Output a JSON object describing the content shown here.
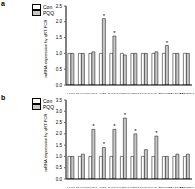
{
  "chart_data": [
    {
      "type": "bar",
      "title": "a",
      "y_label": "mRNA expression by qRT-PCR",
      "legend": "upper left",
      "categories": [
        "HO1",
        "NQO1",
        "SOD1",
        "CAT",
        "SOD2",
        "GPX4",
        "GPX1",
        "SOD3",
        "GCLC",
        "MGST1",
        "UGT1A1",
        "TXNRD1"
      ],
      "series": [
        {
          "name": "Con",
          "color": "#ffffff",
          "values": [
            1,
            1,
            1,
            1,
            1,
            1,
            1,
            1,
            1,
            1,
            1,
            1
          ]
        },
        {
          "name": "PQQ",
          "color": "#c8c8c8",
          "values": [
            1.0,
            1.0,
            1.05,
            2.1,
            1.55,
            0.95,
            1.0,
            1.0,
            1.05,
            1.25,
            1.0,
            1.0
          ]
        }
      ],
      "annotations": [
        {
          "series": "PQQ",
          "category": "CAT",
          "text": "*"
        },
        {
          "series": "PQQ",
          "category": "SOD2",
          "text": "*"
        },
        {
          "series": "PQQ",
          "category": "MGST1",
          "text": "*"
        }
      ],
      "ylim": [
        0,
        2.5
      ],
      "yticks": [
        {
          "value": 0,
          "label": "0.0"
        },
        {
          "value": 0.5,
          "label": "0.5"
        },
        {
          "value": 1,
          "label": "1.0"
        },
        {
          "value": 1.5,
          "label": "1.5"
        },
        {
          "value": 2,
          "label": "2.0"
        },
        {
          "value": 2.5,
          "label": "2.5"
        }
      ]
    },
    {
      "type": "bar",
      "title": "b",
      "y_label": "mRNA expression by qRT-PCR",
      "legend": "upper left",
      "categories": [
        "HO1",
        "NQO1",
        "SOD1",
        "CAT",
        "SOD2",
        "GPX4",
        "GPX1",
        "SOD3",
        "GCLC",
        "MGST1",
        "UGT1A1",
        "TXNRD1"
      ],
      "series": [
        {
          "name": "Con",
          "color": "#ffffff",
          "values": [
            1,
            1,
            1,
            1,
            1,
            1,
            1,
            1,
            1,
            1,
            1,
            1
          ]
        },
        {
          "name": "PQQ",
          "color": "#c8c8c8",
          "values": [
            1.0,
            1.1,
            2.2,
            1.4,
            2.2,
            2.7,
            2.0,
            1.3,
            1.9,
            1.0,
            1.1,
            1.1
          ]
        }
      ],
      "annotations": [
        {
          "series": "PQQ",
          "category": "SOD1",
          "text": "*"
        },
        {
          "series": "PQQ",
          "category": "CAT",
          "text": "*"
        },
        {
          "series": "PQQ",
          "category": "SOD2",
          "text": "*"
        },
        {
          "series": "PQQ",
          "category": "GPX4",
          "text": "*"
        },
        {
          "series": "PQQ",
          "category": "GPX1",
          "text": "*"
        },
        {
          "series": "PQQ",
          "category": "GCLC",
          "text": "*"
        }
      ],
      "ylim": [
        0,
        3.5
      ],
      "yticks": [
        {
          "value": 0,
          "label": "0.0"
        },
        {
          "value": 0.5,
          "label": "0.5"
        },
        {
          "value": 1,
          "label": "1.0"
        },
        {
          "value": 1.5,
          "label": "1.5"
        },
        {
          "value": 2,
          "label": "2.0"
        },
        {
          "value": 2.5,
          "label": "2.5"
        },
        {
          "value": 3,
          "label": "3.0"
        },
        {
          "value": 3.5,
          "label": "3.5"
        }
      ]
    }
  ]
}
